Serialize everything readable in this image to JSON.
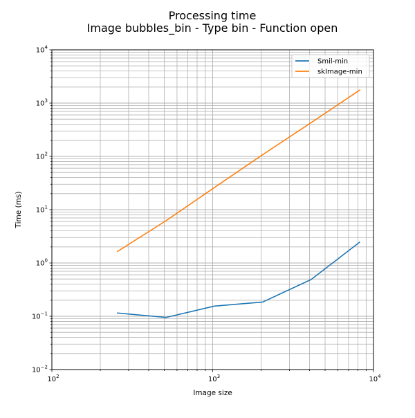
{
  "chart_data": {
    "type": "line",
    "title": "Processing time",
    "subtitle": "Image bubbles_bin - Type bin - Function open",
    "xlabel": "Image size",
    "ylabel": "Time (ms)",
    "xscale": "log",
    "yscale": "log",
    "xlim": [
      100,
      10000
    ],
    "ylim": [
      0.01,
      10000
    ],
    "x_ticks": [
      {
        "base": "10",
        "exp": "2"
      },
      {
        "base": "10",
        "exp": "3"
      },
      {
        "base": "10",
        "exp": "4"
      }
    ],
    "y_ticks": [
      {
        "base": "10",
        "exp": "−2"
      },
      {
        "base": "10",
        "exp": "−1"
      },
      {
        "base": "10",
        "exp": "0"
      },
      {
        "base": "10",
        "exp": "1"
      },
      {
        "base": "10",
        "exp": "2"
      },
      {
        "base": "10",
        "exp": "3"
      },
      {
        "base": "10",
        "exp": "4"
      }
    ],
    "grid": true,
    "legend_position": "upper right",
    "series": [
      {
        "name": "Smil-min",
        "color": "#1f77b4",
        "x": [
          256,
          512,
          1024,
          2048,
          4096,
          8192
        ],
        "y": [
          0.115,
          0.095,
          0.155,
          0.185,
          0.49,
          2.45
        ]
      },
      {
        "name": "skImage-min",
        "color": "#ff7f0e",
        "x": [
          256,
          512,
          1024,
          2048,
          4096,
          8192
        ],
        "y": [
          1.65,
          6.2,
          26,
          108,
          430,
          1750
        ]
      }
    ]
  }
}
